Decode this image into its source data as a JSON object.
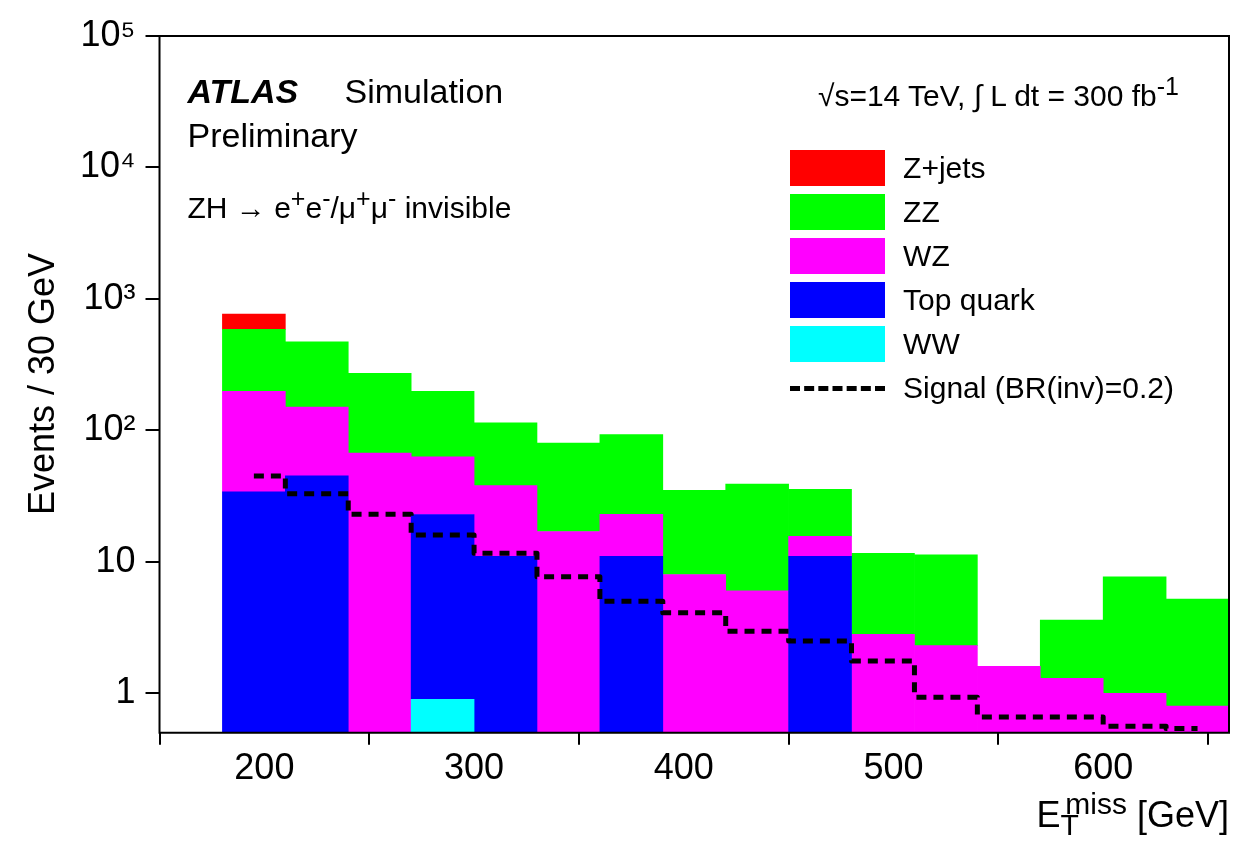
{
  "chart_data": {
    "type": "bar",
    "ylabel": "Events / 30 GeV",
    "xlabel": "E$_{T}$$^{miss}$ [GeV]",
    "x": [
      195,
      225,
      255,
      285,
      315,
      345,
      375,
      405,
      435,
      465,
      495,
      525,
      555,
      585,
      615,
      645
    ],
    "stacked": true,
    "log": "y",
    "legend": "top right",
    "series": [
      {
        "name": "WW",
        "color": "#00ffff",
        "values": [
          null,
          null,
          null,
          0.9,
          null,
          null,
          null,
          null,
          null,
          null,
          null,
          null,
          null,
          null,
          null,
          null
        ]
      },
      {
        "name": "Top quark",
        "color": "#0000ff",
        "values": [
          34,
          45,
          null,
          22,
          11,
          null,
          11,
          null,
          null,
          11,
          null,
          null,
          null,
          null,
          null,
          null
        ]
      },
      {
        "name": "WZ",
        "color": "#ff00ff",
        "values": [
          164,
          105,
          67,
          40,
          27,
          17,
          12,
          8,
          6,
          4.6,
          2.8,
          2.3,
          1.6,
          1.3,
          1.0,
          0.8
        ]
      },
      {
        "name": "ZZ",
        "color": "#00ff00",
        "values": [
          388,
          322,
          205,
          135,
          76,
          63,
          70,
          27,
          33,
          20,
          8.8,
          9.0,
          null,
          2.3,
          6.7,
          4.4
        ]
      },
      {
        "name": "Z+jets",
        "color": "#ff0000",
        "values": [
          180,
          null,
          null,
          null,
          null,
          null,
          null,
          null,
          null,
          null,
          null,
          null,
          null,
          null,
          null,
          null
        ]
      },
      {
        "name": "Signal (BR(inv)=0.2)",
        "type": "step",
        "color": "#000000",
        "line_style": "dashed",
        "x": [
          195,
          225,
          255,
          285,
          315,
          345,
          375,
          405,
          435,
          465,
          495,
          525,
          555,
          585,
          615,
          645
        ],
        "values": [
          45,
          33,
          23,
          16,
          11.6,
          7.7,
          5.0,
          4.1,
          2.96,
          2.5,
          1.76,
          0.93,
          0.66,
          0.66,
          0.56,
          0.54
        ]
      }
    ],
    "xlim": [
      150,
      660
    ],
    "xticks": [
      200,
      300,
      400,
      500,
      600
    ],
    "ylim": [
      0.5,
      100000
    ],
    "yticks": [
      1,
      10,
      {
        "value": 100,
        "label": "10²"
      },
      {
        "value": 1000,
        "label": "10³"
      },
      {
        "value": 10000,
        "label": "10⁴"
      },
      {
        "value": 100000,
        "label": "10⁵"
      }
    ],
    "annotations": [
      "ATLAS",
      "Simulation",
      "Preliminary",
      "ZH → e$^{+}$e$^{-}$/μ$^{+}$μ$^{-}$ invisible",
      "√s=14 TeV, ∫ L dt = 300 fb$^{-1}$"
    ]
  }
}
